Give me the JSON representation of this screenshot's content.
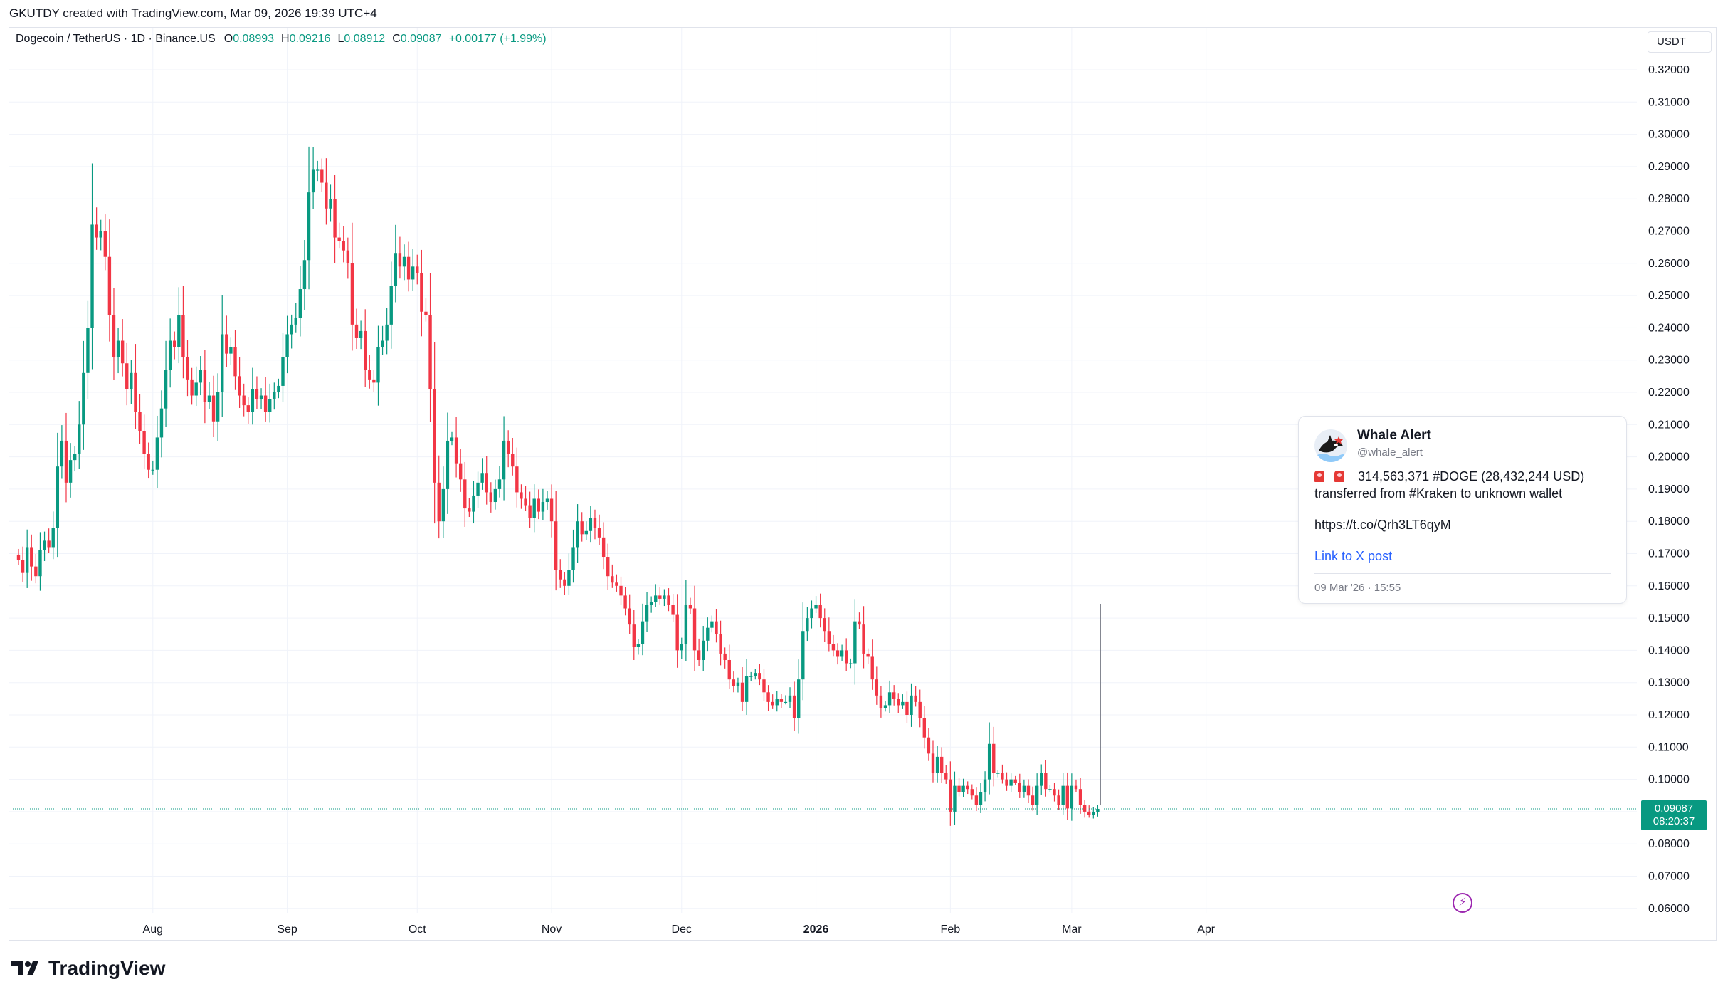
{
  "header": {
    "attribution": "GKUTDY created with TradingView.com, Mar 09, 2026 19:39 UTC+4"
  },
  "legend": {
    "symbol": "Dogecoin / TetherUS · 1D · Binance.US",
    "open_label": "O",
    "open": "0.08993",
    "high_label": "H",
    "high": "0.09216",
    "low_label": "L",
    "low": "0.08912",
    "close_label": "C",
    "close": "0.09087",
    "change": "+0.00177 (+1.99%)"
  },
  "price_scale": {
    "unit": "USDT",
    "last_price": "0.09087",
    "countdown": "08:20:37"
  },
  "colors": {
    "up": "#089981",
    "down": "#f23645",
    "grid": "#f0f3fa",
    "accent": "#2962ff"
  },
  "popup": {
    "name": "Whale Alert",
    "handle": "@whale_alert",
    "line1": "314,563,371 #DOGE (28,432,244 USD)",
    "line2": "transferred from #Kraken to unknown wallet",
    "url": "https://t.co/Qrh3LT6qyM",
    "link_label": "Link to X post",
    "timestamp": "09 Mar '26 · 15:55",
    "icon": "siren-icon"
  },
  "event_marker_icon": "lightning-icon",
  "brand": {
    "name": "TradingView",
    "logo_icon": "tradingview-logo-icon"
  },
  "chart_data": {
    "type": "candlestick",
    "title": "Dogecoin / TetherUS · 1D · Binance.US",
    "ylabel": "USDT",
    "ylim": [
      0.055,
      0.325
    ],
    "y_ticks": [
      "0.32000",
      "0.31000",
      "0.30000",
      "0.29000",
      "0.28000",
      "0.27000",
      "0.26000",
      "0.25000",
      "0.24000",
      "0.23000",
      "0.22000",
      "0.21000",
      "0.20000",
      "0.19000",
      "0.18000",
      "0.17000",
      "0.16000",
      "0.15000",
      "0.14000",
      "0.13000",
      "0.12000",
      "0.11000",
      "0.10000",
      "0.09000",
      "0.08000",
      "0.07000",
      "0.06000"
    ],
    "x_ticks": [
      "Aug",
      "Sep",
      "Oct",
      "Nov",
      "Dec",
      "2026",
      "Feb",
      "Mar",
      "Apr"
    ],
    "grid": true,
    "last_close": 0.09087,
    "close_series": {
      "start_date": "2025-07-01",
      "interval": "1D",
      "values": [
        0.168,
        0.164,
        0.172,
        0.166,
        0.163,
        0.171,
        0.174,
        0.172,
        0.178,
        0.197,
        0.205,
        0.192,
        0.199,
        0.201,
        0.21,
        0.226,
        0.24,
        0.272,
        0.268,
        0.27,
        0.262,
        0.244,
        0.231,
        0.236,
        0.229,
        0.221,
        0.226,
        0.214,
        0.208,
        0.201,
        0.196,
        0.196,
        0.206,
        0.215,
        0.227,
        0.236,
        0.234,
        0.244,
        0.231,
        0.224,
        0.219,
        0.223,
        0.227,
        0.217,
        0.219,
        0.211,
        0.22,
        0.238,
        0.232,
        0.234,
        0.225,
        0.219,
        0.216,
        0.214,
        0.221,
        0.218,
        0.219,
        0.214,
        0.218,
        0.22,
        0.222,
        0.231,
        0.238,
        0.241,
        0.243,
        0.252,
        0.261,
        0.282,
        0.289,
        0.289,
        0.285,
        0.277,
        0.28,
        0.268,
        0.267,
        0.264,
        0.26,
        0.241,
        0.237,
        0.239,
        0.227,
        0.224,
        0.223,
        0.234,
        0.236,
        0.241,
        0.253,
        0.263,
        0.259,
        0.262,
        0.255,
        0.259,
        0.257,
        0.245,
        0.244,
        0.221,
        0.192,
        0.18,
        0.19,
        0.205,
        0.206,
        0.198,
        0.193,
        0.184,
        0.183,
        0.188,
        0.192,
        0.195,
        0.189,
        0.186,
        0.19,
        0.193,
        0.205,
        0.201,
        0.197,
        0.189,
        0.187,
        0.185,
        0.181,
        0.187,
        0.183,
        0.186,
        0.187,
        0.18,
        0.165,
        0.162,
        0.16,
        0.165,
        0.172,
        0.18,
        0.176,
        0.177,
        0.181,
        0.178,
        0.175,
        0.169,
        0.163,
        0.161,
        0.16,
        0.157,
        0.153,
        0.148,
        0.141,
        0.142,
        0.149,
        0.154,
        0.155,
        0.157,
        0.156,
        0.157,
        0.154,
        0.151,
        0.14,
        0.142,
        0.154,
        0.153,
        0.14,
        0.137,
        0.143,
        0.147,
        0.149,
        0.145,
        0.139,
        0.137,
        0.131,
        0.129,
        0.13,
        0.124,
        0.132,
        0.132,
        0.133,
        0.131,
        0.127,
        0.124,
        0.123,
        0.125,
        0.124,
        0.124,
        0.126,
        0.119,
        0.131,
        0.146,
        0.15,
        0.153,
        0.154,
        0.15,
        0.146,
        0.142,
        0.14,
        0.138,
        0.14,
        0.136,
        0.136,
        0.149,
        0.148,
        0.139,
        0.138,
        0.131,
        0.126,
        0.122,
        0.123,
        0.127,
        0.125,
        0.123,
        0.124,
        0.12,
        0.126,
        0.124,
        0.119,
        0.113,
        0.108,
        0.102,
        0.107,
        0.102,
        0.1,
        0.09,
        0.098,
        0.096,
        0.098,
        0.097,
        0.095,
        0.092,
        0.096,
        0.1,
        0.111,
        0.102,
        0.102,
        0.1,
        0.098,
        0.1,
        0.099,
        0.096,
        0.098,
        0.095,
        0.092,
        0.098,
        0.102,
        0.097,
        0.097,
        0.095,
        0.092,
        0.098,
        0.091,
        0.098,
        0.097,
        0.092,
        0.09,
        0.089,
        0.0899,
        0.09087
      ]
    }
  }
}
